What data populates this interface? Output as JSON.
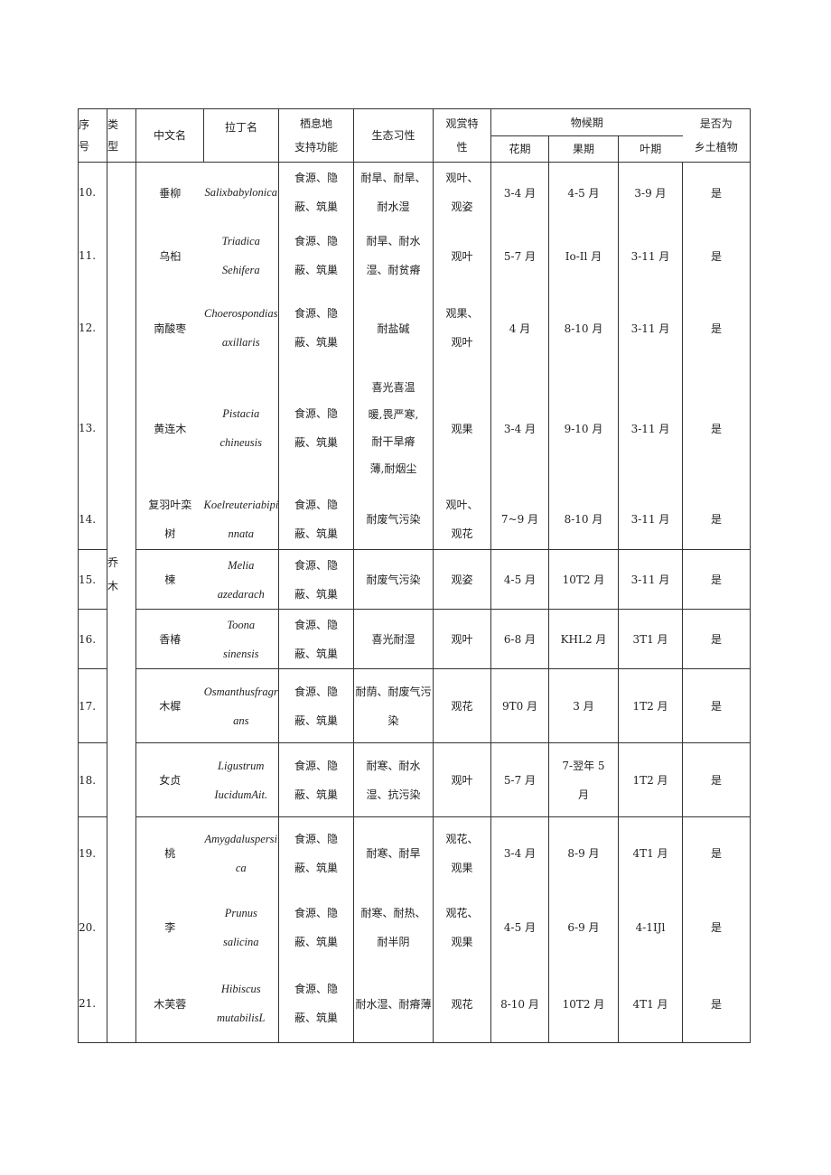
{
  "header": {
    "seq": "序\n号",
    "type": "类\n型",
    "cn": "中文名",
    "latin": "拉丁名",
    "habitat": "栖息地\n支持功能",
    "ecology": "生态习性",
    "ornamental": "观赏特\n性",
    "phenology": "物候期",
    "flower": "花期",
    "fruit": "果期",
    "leaf": "叶期",
    "native": "是否为\n乡土植物"
  },
  "type_label": "乔\n木",
  "rows": [
    {
      "no": "10.",
      "cn": "垂柳",
      "latin": "Salixbabylonica",
      "habitat": "食源、隐\n蔽、筑巢",
      "ecology": "耐旱、耐旱、\n耐水湿",
      "orn": "观叶、\n观姿",
      "flower": "3-4 月",
      "fruit": "4-5 月",
      "leaf": "3-9 月",
      "native": "是"
    },
    {
      "no": "11.",
      "cn": "乌桕",
      "latin": "Triadica\nSehifera",
      "habitat": "食源、隐\n蔽、筑巢",
      "ecology": "耐旱、耐水\n湿、耐贫瘠",
      "orn": "观叶",
      "flower": "5-7 月",
      "fruit": "Io-Il 月",
      "leaf": "3-11 月",
      "native": "是"
    },
    {
      "no": "12.",
      "cn": "南酸枣",
      "latin": "Choerospondias\naxillaris",
      "habitat": "食源、隐\n蔽、筑巢",
      "ecology": "耐盐碱",
      "orn": "观果、\n观叶",
      "flower": "4 月",
      "fruit": "8-10 月",
      "leaf": "3-11 月",
      "native": "是"
    },
    {
      "no": "13.",
      "cn": "黄连木",
      "latin": "Pistacia\nchineusis",
      "habitat": "食源、隐\n蔽、筑巢",
      "ecology": "喜光喜温\n暖,畏严寒,\n耐干旱瘠\n薄,耐烟尘",
      "orn": "观果",
      "flower": "3-4 月",
      "fruit": "9-10 月",
      "leaf": "3-11 月",
      "native": "是"
    },
    {
      "no": "14.",
      "cn": "复羽叶栾\n树",
      "latin": "Koelreuteriabipi\nnnata",
      "habitat": "食源、隐\n蔽、筑巢",
      "ecology": "耐废气污染",
      "orn": "观叶、\n观花",
      "flower": "7~9 月",
      "fruit": "8-10 月",
      "leaf": "3-11 月",
      "native": "是"
    },
    {
      "no": "15.",
      "cn": "楝",
      "latin": "Melia\nazedarach",
      "habitat": "食源、隐\n蔽、筑巢",
      "ecology": "耐废气污染",
      "orn": "观姿",
      "flower": "4-5 月",
      "fruit": "10T2 月",
      "leaf": "3-11 月",
      "native": "是"
    },
    {
      "no": "16.",
      "cn": "香椿",
      "latin": "Toona\nsinensis",
      "habitat": "食源、隐\n蔽、筑巢",
      "ecology": "喜光耐湿",
      "orn": "观叶",
      "flower": "6-8 月",
      "fruit": "KHL2 月",
      "leaf": "3T1 月",
      "native": "是"
    },
    {
      "no": "17.",
      "cn": "木樨",
      "latin": "Osmanthusfragr\nans",
      "habitat": "食源、隐\n蔽、筑巢",
      "ecology": "耐荫、耐废气污\n染",
      "orn": "观花",
      "flower": "9T0 月",
      "fruit": "3 月",
      "leaf": "1T2 月",
      "native": "是"
    },
    {
      "no": "18.",
      "cn": "女贞",
      "latin": "Ligustrum\nIucidumAit.",
      "habitat": "食源、隐\n蔽、筑巢",
      "ecology": "耐寒、耐水\n湿、抗污染",
      "orn": "观叶",
      "flower": "5-7 月",
      "fruit": "7-翌年 5\n月",
      "leaf": "1T2 月",
      "native": "是"
    },
    {
      "no": "19.",
      "cn": "桃",
      "latin": "Amygdaluspersi\nca",
      "habitat": "食源、隐\n蔽、筑巢",
      "ecology": "耐寒、耐旱",
      "orn": "观花、\n观果",
      "flower": "3-4 月",
      "fruit": "8-9 月",
      "leaf": "4T1 月",
      "native": "是"
    },
    {
      "no": "20.",
      "cn": "李",
      "latin": "Prunus\nsalicina",
      "habitat": "食源、隐\n蔽、筑巢",
      "ecology": "耐寒、耐热、\n耐半阴",
      "orn": "观花、\n观果",
      "flower": "4-5 月",
      "fruit": "6-9 月",
      "leaf": "4-1IJl",
      "native": "是"
    },
    {
      "no": "21.",
      "cn": "木芙蓉",
      "latin": "Hibiscus\nmutabilisL",
      "habitat": "食源、隐\n蔽、筑巢",
      "ecology": "耐水湿、耐瘠薄",
      "orn": "观花",
      "flower": "8-10 月",
      "fruit": "10T2 月",
      "leaf": "4T1 月",
      "native": "是"
    }
  ]
}
